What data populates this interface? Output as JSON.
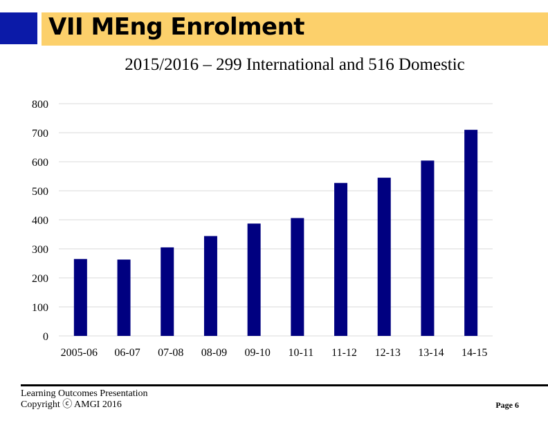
{
  "title": "VII MEng Enrolment",
  "subtitle": "2015/2016 – 299 International and 516 Domestic",
  "footer": {
    "line1": "Learning Outcomes Presentation",
    "line2": "Copyright ⓒ AMGI 2016",
    "page": "Page 6"
  },
  "colors": {
    "accent_blue": "#0b1aa8",
    "title_bar": "#fcd06b",
    "bar": "#000080",
    "grid": "#d9d9d9"
  },
  "chart_data": {
    "type": "bar",
    "categories": [
      "2005-06",
      "06-07",
      "07-08",
      "08-09",
      "09-10",
      "10-11",
      "11-12",
      "12-13",
      "13-14",
      "14-15"
    ],
    "values": [
      265,
      263,
      305,
      344,
      387,
      406,
      527,
      545,
      604,
      710
    ],
    "yticks": [
      0,
      100,
      200,
      300,
      400,
      500,
      600,
      700,
      800
    ],
    "ylim": [
      0,
      800
    ],
    "grid": true,
    "legend": "none"
  }
}
